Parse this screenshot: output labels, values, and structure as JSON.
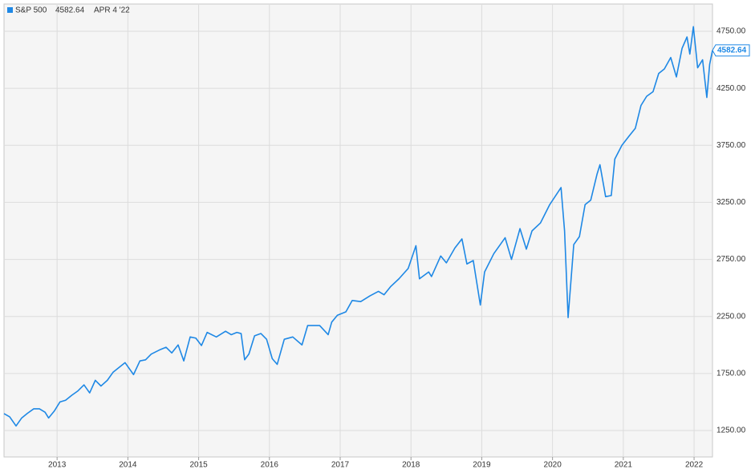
{
  "chart_data": {
    "type": "line",
    "last_date": "APR 4 '22",
    "x": [
      2012.25,
      2012.33,
      2012.42,
      2012.5,
      2012.58,
      2012.67,
      2012.75,
      2012.83,
      2012.88,
      2012.96,
      2013.04,
      2013.12,
      2013.21,
      2013.29,
      2013.38,
      2013.46,
      2013.54,
      2013.62,
      2013.71,
      2013.79,
      2013.88,
      2013.96,
      2014.08,
      2014.17,
      2014.25,
      2014.33,
      2014.46,
      2014.54,
      2014.62,
      2014.71,
      2014.79,
      2014.88,
      2014.96,
      2015.04,
      2015.12,
      2015.25,
      2015.38,
      2015.46,
      2015.54,
      2015.6,
      2015.65,
      2015.71,
      2015.79,
      2015.88,
      2015.96,
      2016.04,
      2016.11,
      2016.21,
      2016.33,
      2016.46,
      2016.54,
      2016.71,
      2016.83,
      2016.88,
      2016.96,
      2017.08,
      2017.17,
      2017.29,
      2017.42,
      2017.54,
      2017.62,
      2017.71,
      2017.83,
      2017.96,
      2018.07,
      2018.12,
      2018.25,
      2018.29,
      2018.42,
      2018.5,
      2018.62,
      2018.72,
      2018.79,
      2018.88,
      2018.98,
      2019.04,
      2019.17,
      2019.33,
      2019.42,
      2019.54,
      2019.63,
      2019.71,
      2019.83,
      2019.96,
      2020.12,
      2020.17,
      2020.22,
      2020.3,
      2020.38,
      2020.46,
      2020.54,
      2020.63,
      2020.67,
      2020.75,
      2020.83,
      2020.88,
      2020.98,
      2021.08,
      2021.17,
      2021.25,
      2021.33,
      2021.42,
      2021.5,
      2021.58,
      2021.67,
      2021.75,
      2021.83,
      2021.9,
      2021.94,
      2021.99,
      2022.05,
      2022.12,
      2022.18,
      2022.22,
      2022.26
    ],
    "series": [
      {
        "name": "S&P 500",
        "color": "#1e88e5",
        "values": [
          1398,
          1370,
          1290,
          1360,
          1400,
          1440,
          1440,
          1410,
          1360,
          1420,
          1500,
          1515,
          1560,
          1595,
          1650,
          1580,
          1690,
          1640,
          1690,
          1760,
          1805,
          1845,
          1740,
          1860,
          1870,
          1920,
          1960,
          1980,
          1930,
          2000,
          1860,
          2070,
          2060,
          1995,
          2110,
          2070,
          2120,
          2090,
          2110,
          2100,
          1870,
          1920,
          2080,
          2100,
          2050,
          1880,
          1830,
          2050,
          2070,
          2000,
          2170,
          2170,
          2090,
          2200,
          2260,
          2290,
          2390,
          2380,
          2430,
          2470,
          2440,
          2510,
          2580,
          2670,
          2870,
          2580,
          2640,
          2600,
          2780,
          2720,
          2850,
          2930,
          2710,
          2740,
          2350,
          2640,
          2800,
          2940,
          2750,
          3020,
          2840,
          3000,
          3070,
          3230,
          3380,
          3000,
          2240,
          2880,
          2950,
          3230,
          3270,
          3500,
          3580,
          3300,
          3310,
          3630,
          3750,
          3830,
          3900,
          4100,
          4180,
          4220,
          4380,
          4420,
          4520,
          4350,
          4600,
          4700,
          4550,
          4790,
          4430,
          4500,
          4170,
          4460,
          4582.64
        ]
      }
    ],
    "xlim": [
      2012.25,
      2022.26
    ],
    "xticks": [
      2013,
      2014,
      2015,
      2016,
      2017,
      2018,
      2019,
      2020,
      2021,
      2022
    ],
    "ylim": [
      1018,
      4989
    ],
    "yticks": [
      {
        "value": 1250,
        "label": "1250.00"
      },
      {
        "value": 1750,
        "label": "1750.00"
      },
      {
        "value": 2250,
        "label": "2250.00"
      },
      {
        "value": 2750,
        "label": "2750.00"
      },
      {
        "value": 3250,
        "label": "3250.00"
      },
      {
        "value": 3750,
        "label": "3750.00"
      },
      {
        "value": 4250,
        "label": "4250.00"
      },
      {
        "value": 4750,
        "label": "4750.00"
      }
    ],
    "grid": true
  }
}
